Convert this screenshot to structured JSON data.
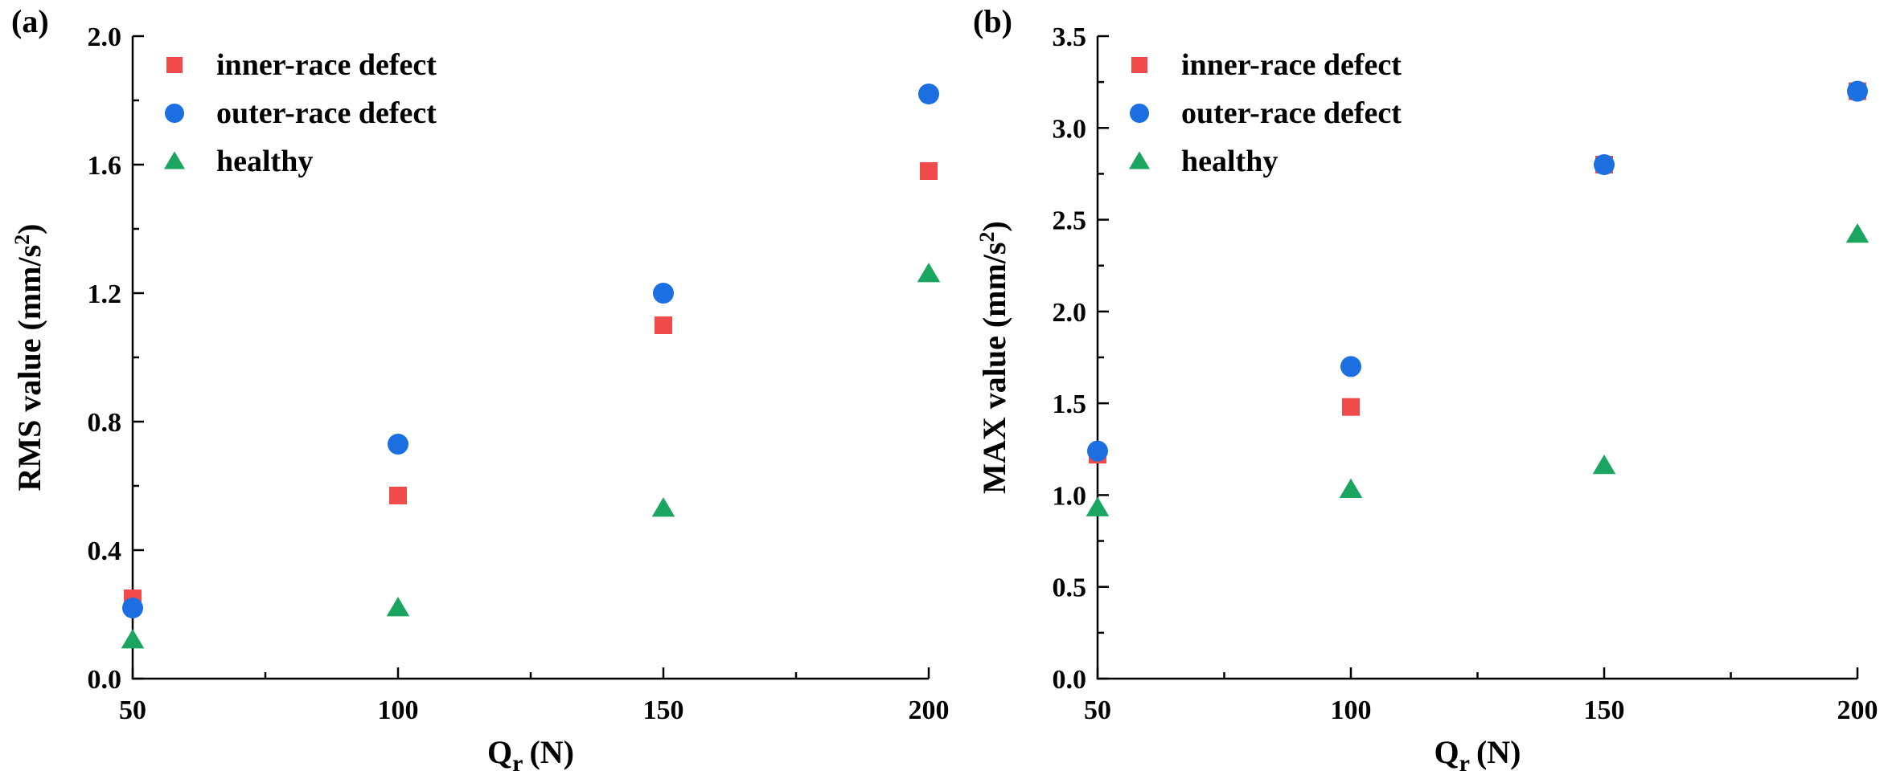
{
  "figure": {
    "colors": {
      "inner": "#f24b4b",
      "outer": "#1b6fe0",
      "healthy": "#1aa660"
    }
  },
  "chart_data": [
    {
      "panel_label": "(a)",
      "type": "scatter",
      "xlabel": "Q",
      "xlabel_sub": "r",
      "xlabel_unit": "(N)",
      "ylabel": "RMS value (mm/s",
      "ylabel_sup": "2",
      "ylabel_close": ")",
      "xlim": [
        50,
        200
      ],
      "ylim": [
        0.0,
        2.0
      ],
      "xticks": [
        50,
        100,
        150,
        200
      ],
      "xtick_labels": [
        "50",
        "100",
        "150",
        "200"
      ],
      "xminor": [
        75,
        125,
        175
      ],
      "yticks": [
        0.0,
        0.4,
        0.8,
        1.2,
        1.6,
        2.0
      ],
      "ytick_labels": [
        "0.0",
        "0.4",
        "0.8",
        "1.2",
        "1.6",
        "2.0"
      ],
      "yminor": [
        0.2,
        0.6,
        1.0,
        1.4,
        1.8
      ],
      "legend_position": "top-left",
      "series": [
        {
          "key": "inner",
          "name": "inner-race defect",
          "marker": "square",
          "x": [
            50,
            100,
            150,
            200
          ],
          "y": [
            0.25,
            0.57,
            1.1,
            1.58
          ]
        },
        {
          "key": "outer",
          "name": "outer-race defect",
          "marker": "circle",
          "x": [
            50,
            100,
            150,
            200
          ],
          "y": [
            0.22,
            0.73,
            1.2,
            1.82
          ]
        },
        {
          "key": "healthy",
          "name": "healthy",
          "marker": "triangle",
          "x": [
            50,
            100,
            150,
            200
          ],
          "y": [
            0.12,
            0.22,
            0.53,
            1.26
          ]
        }
      ]
    },
    {
      "panel_label": "(b)",
      "type": "scatter",
      "xlabel": "Q",
      "xlabel_sub": "r",
      "xlabel_unit": "(N)",
      "ylabel": "MAX value (mm/s",
      "ylabel_sup": "2",
      "ylabel_close": ")",
      "xlim": [
        50,
        200
      ],
      "ylim": [
        0.0,
        3.5
      ],
      "xticks": [
        50,
        100,
        150,
        200
      ],
      "xtick_labels": [
        "50",
        "100",
        "150",
        "200"
      ],
      "xminor": [
        75,
        125,
        175
      ],
      "yticks": [
        0.0,
        0.5,
        1.0,
        1.5,
        2.0,
        2.5,
        3.0,
        3.5
      ],
      "ytick_labels": [
        "0.0",
        "0.5",
        "1.0",
        "1.5",
        "2.0",
        "2.5",
        "3.0",
        "3.5"
      ],
      "yminor": [
        0.25,
        0.75,
        1.25,
        1.75,
        2.25,
        2.75,
        3.25
      ],
      "legend_position": "top-left",
      "series": [
        {
          "key": "inner",
          "name": "inner-race defect",
          "marker": "square",
          "x": [
            50,
            100,
            150,
            200
          ],
          "y": [
            1.22,
            1.48,
            2.8,
            3.2
          ]
        },
        {
          "key": "outer",
          "name": "outer-race defect",
          "marker": "circle",
          "x": [
            50,
            100,
            150,
            200
          ],
          "y": [
            1.24,
            1.7,
            2.8,
            3.2
          ]
        },
        {
          "key": "healthy",
          "name": "healthy",
          "marker": "triangle",
          "x": [
            50,
            100,
            150,
            200
          ],
          "y": [
            0.93,
            1.03,
            1.16,
            2.42
          ]
        }
      ]
    }
  ]
}
